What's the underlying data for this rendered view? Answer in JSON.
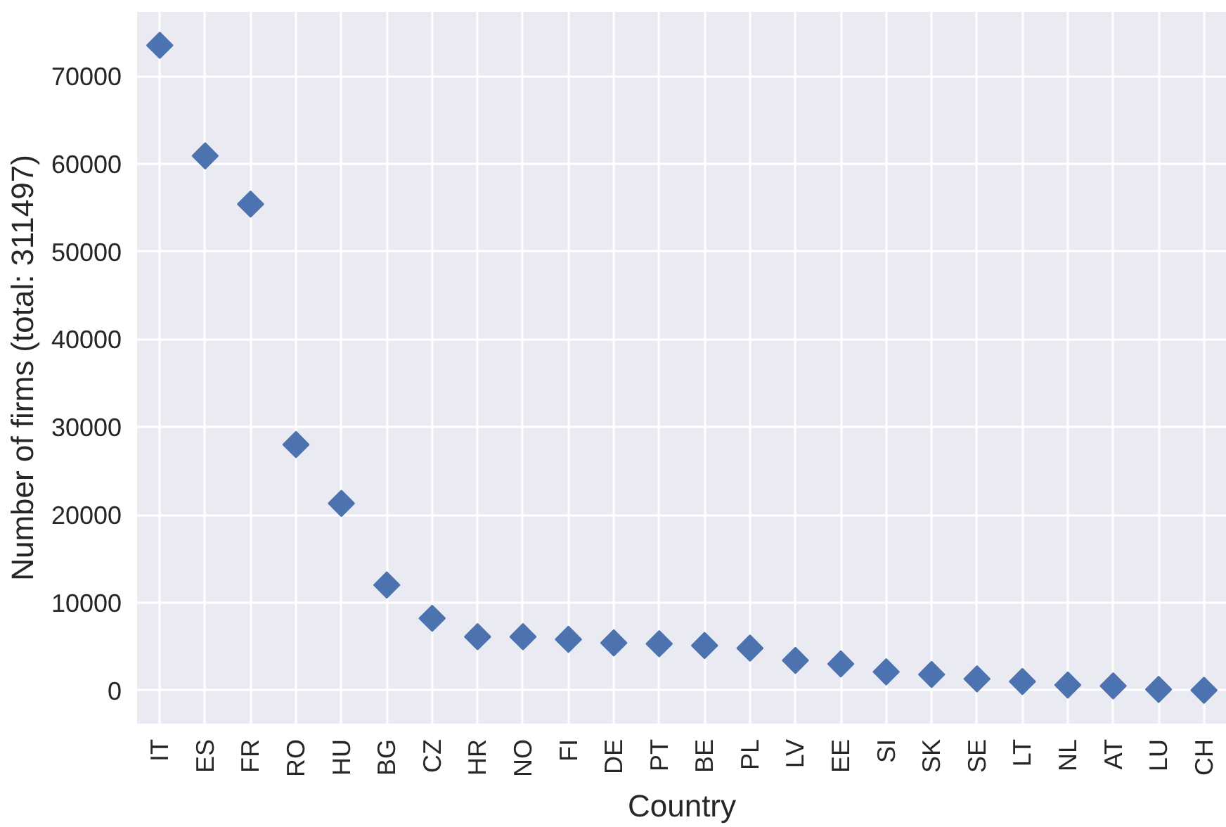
{
  "chart_data": {
    "type": "scatter",
    "xlabel": "Country",
    "ylabel": "Number of firms (total: 311497)",
    "categories": [
      "IT",
      "ES",
      "FR",
      "RO",
      "HU",
      "BG",
      "CZ",
      "HR",
      "NO",
      "FI",
      "DE",
      "PT",
      "BE",
      "PL",
      "LV",
      "EE",
      "SI",
      "SK",
      "SE",
      "LT",
      "NL",
      "AT",
      "LU",
      "CH"
    ],
    "series": [
      {
        "color": "#4c72b0",
        "values": [
          73500,
          60900,
          55400,
          28000,
          21300,
          12000,
          8200,
          6100,
          6100,
          5800,
          5400,
          5300,
          5100,
          4800,
          3400,
          3000,
          2100,
          1800,
          1300,
          1000,
          600,
          500,
          100,
          0
        ]
      }
    ],
    "ylim": [
      -3800,
      77300
    ],
    "yticks": [
      0,
      10000,
      20000,
      30000,
      40000,
      50000,
      60000,
      70000
    ],
    "grid": true,
    "marker": "diamond"
  }
}
